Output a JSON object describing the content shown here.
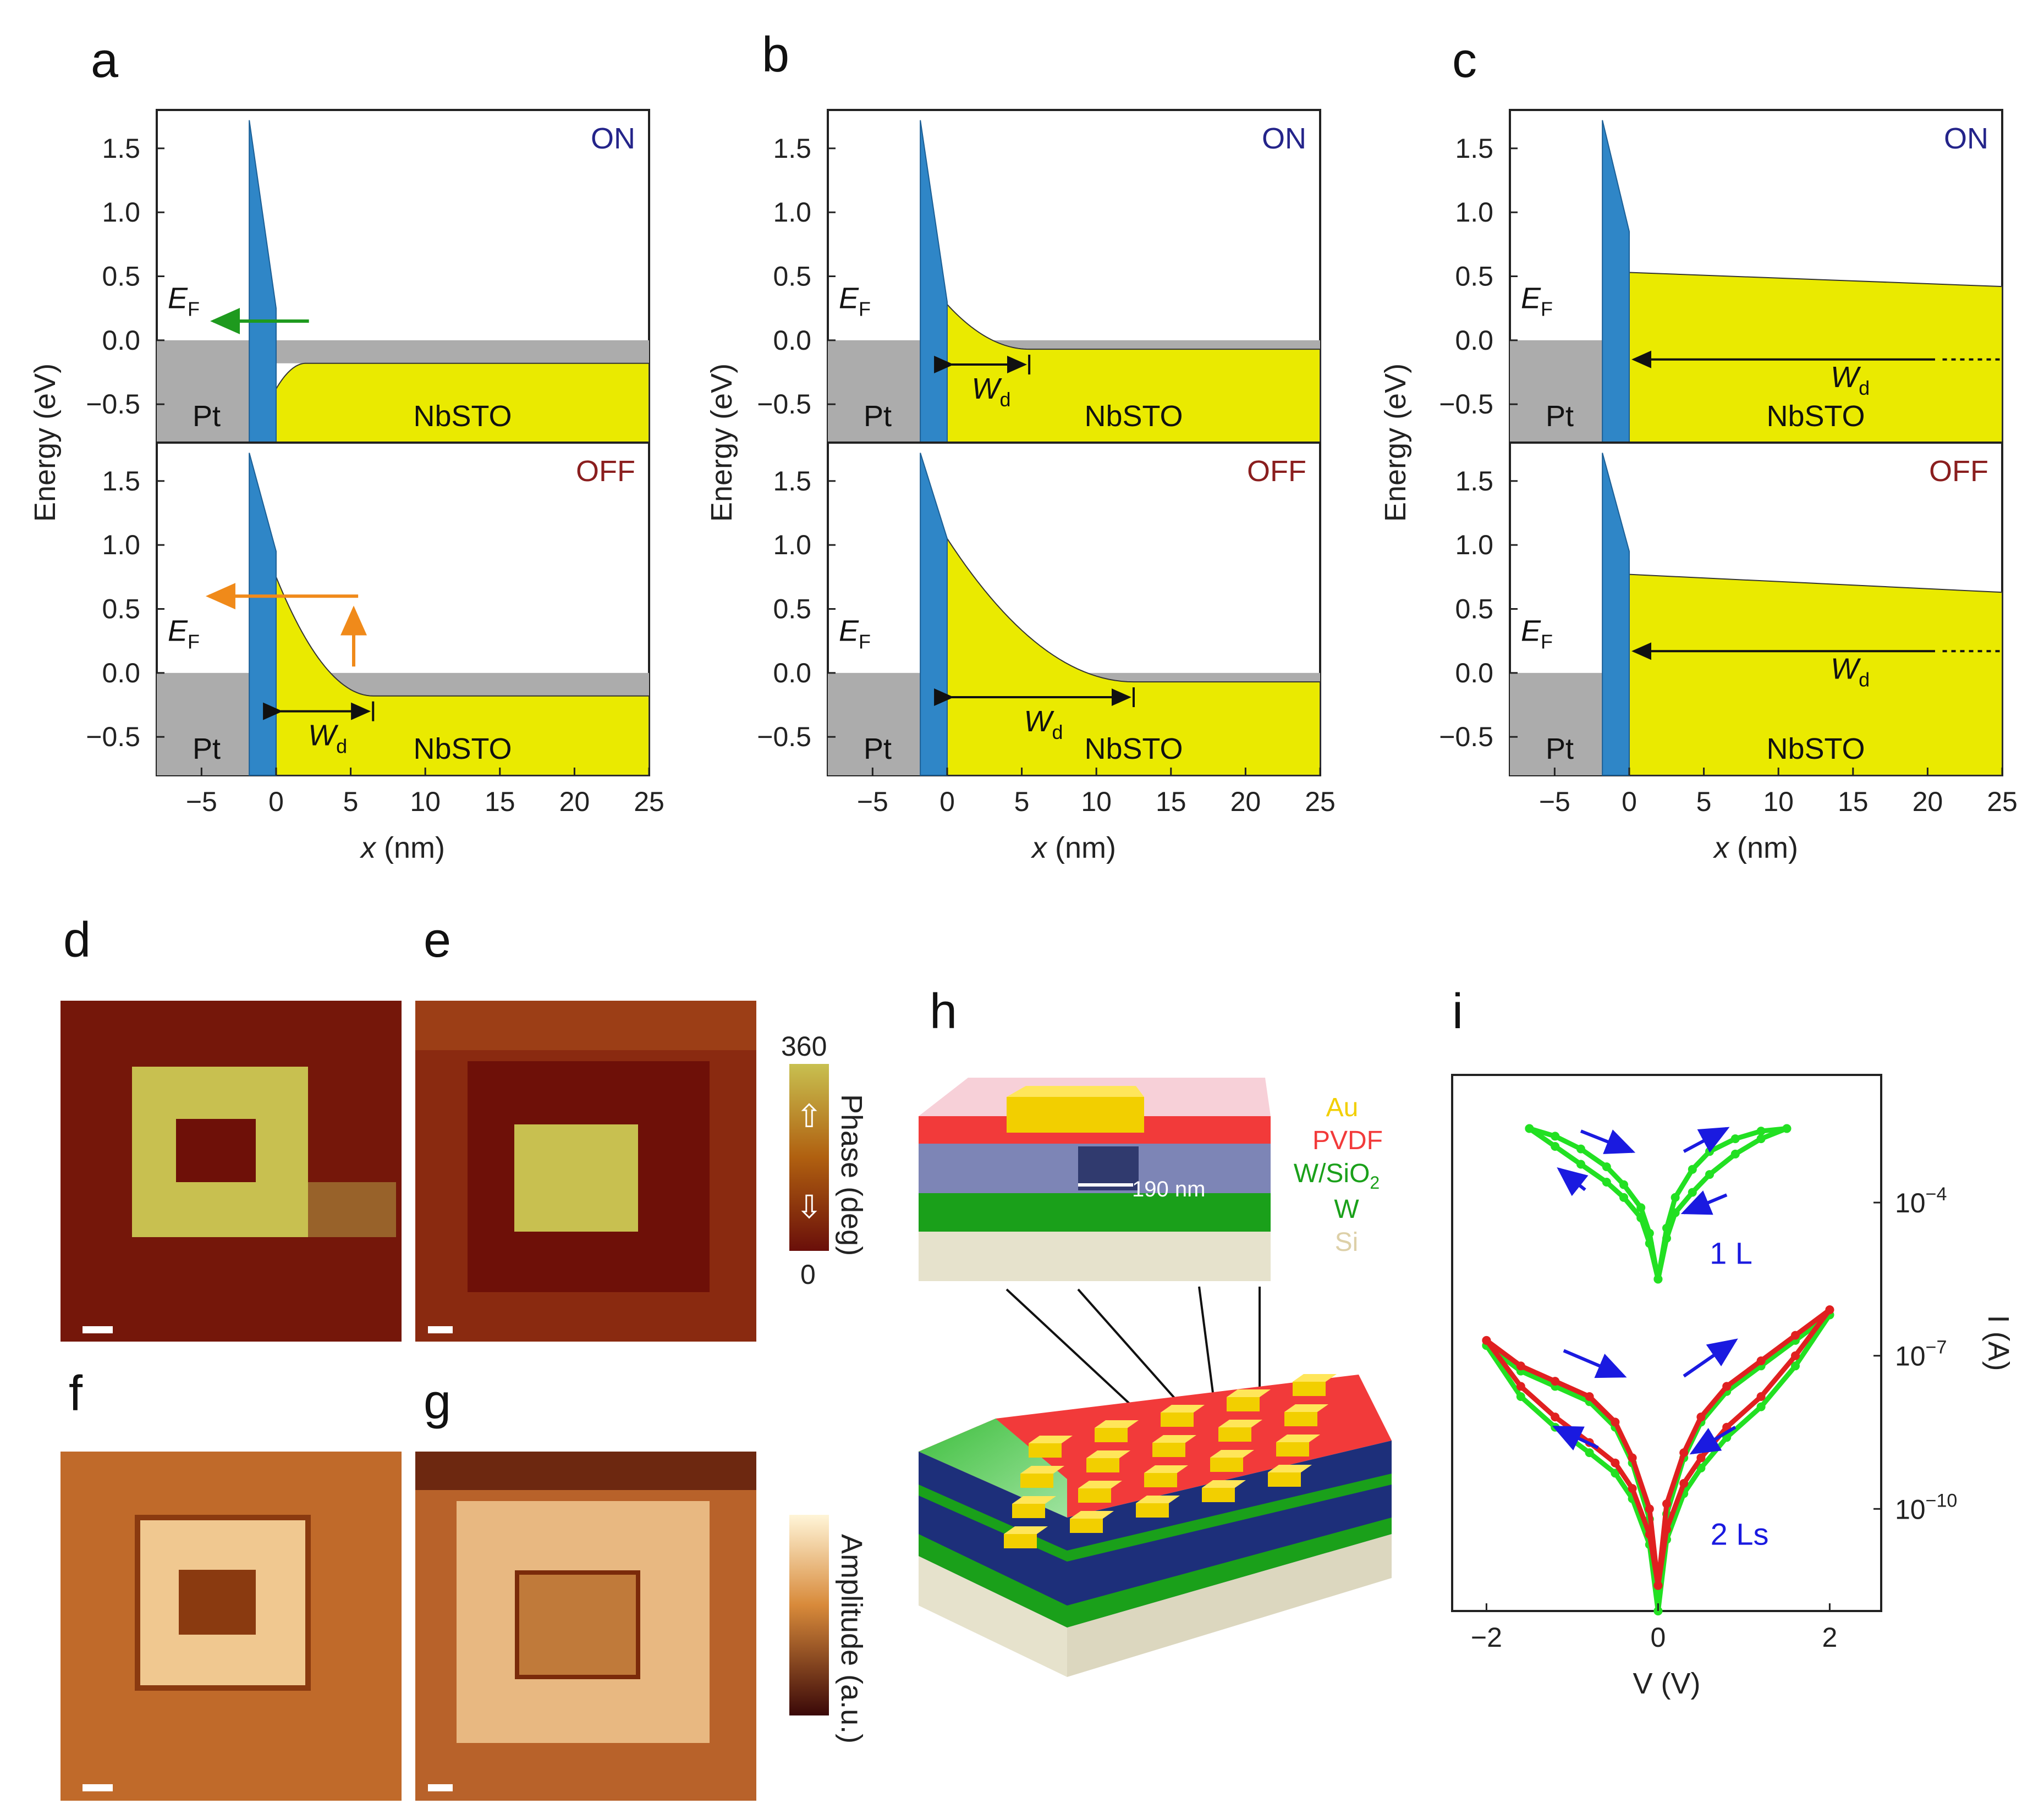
{
  "panel_labels": [
    "a",
    "b",
    "c",
    "d",
    "e",
    "f",
    "g",
    "h",
    "i"
  ],
  "colors": {
    "pt": "#acacac",
    "barrier": "#2f86c7",
    "nbsto": "#eaea00",
    "nbsto_edge": "#333333",
    "on": "#24248a",
    "off": "#8a1e1e",
    "green_arrow": "#1e9a1e",
    "orange_arrow": "#f08a1a",
    "iv_green": "#22e022",
    "iv_red": "#e02020",
    "iv_arrow": "#1a1ae0",
    "au": "#f2cf00",
    "pvdf": "#f23a3a",
    "wsio2": "#1d2f7a",
    "w": "#1aa01a",
    "si": "#ddd8c0"
  },
  "chart_data": [
    {
      "id": "a",
      "type": "line",
      "title": "",
      "xlabel": "x (nm)",
      "ylabel": "Energy (eV)",
      "xlim": [
        -8,
        25
      ],
      "ylim": [
        -0.8,
        1.8
      ],
      "xticks": [
        -5,
        0,
        5,
        10,
        15,
        20,
        25
      ],
      "yticks": [
        1.5,
        1.0,
        0.5,
        0.0,
        -0.5
      ],
      "ytick_labels": [
        "1.5",
        "1.0",
        "0.5",
        "0.0",
        "−0.5"
      ],
      "xtick_labels": [
        "−5",
        "0",
        "5",
        "10",
        "15",
        "20",
        "25"
      ],
      "states": [
        {
          "name": "ON",
          "barrier_top": 1.72,
          "barrier_right_top": 0.25,
          "band_start": -0.38,
          "band_flat": -0.18,
          "wd": 2,
          "fermi_label": "E",
          "fermi_sub": "F",
          "pt_label": "Pt",
          "nbsto_label": "NbSTO",
          "wd_label": "W",
          "wd_sub": "d",
          "wd_shown": false
        },
        {
          "name": "OFF",
          "barrier_top": 1.72,
          "barrier_right_top": 0.95,
          "band_start": 0.75,
          "band_flat": -0.18,
          "wd": 6.5,
          "fermi_label": "E",
          "fermi_sub": "F",
          "pt_label": "Pt",
          "nbsto_label": "NbSTO",
          "wd_label": "W",
          "wd_sub": "d",
          "wd_shown": true
        }
      ]
    },
    {
      "id": "b",
      "type": "line",
      "title": "",
      "xlabel": "x (nm)",
      "ylabel": "Energy (eV)",
      "xlim": [
        -8,
        25
      ],
      "ylim": [
        -0.8,
        1.8
      ],
      "xticks": [
        -5,
        0,
        5,
        10,
        15,
        20,
        25
      ],
      "yticks": [
        1.5,
        1.0,
        0.5,
        0.0,
        -0.5
      ],
      "ytick_labels": [
        "1.5",
        "1.0",
        "0.5",
        "0.0",
        "−0.5"
      ],
      "xtick_labels": [
        "−5",
        "0",
        "5",
        "10",
        "15",
        "20",
        "25"
      ],
      "states": [
        {
          "name": "ON",
          "barrier_top": 1.72,
          "barrier_right_top": 0.3,
          "band_start": 0.28,
          "band_flat": -0.07,
          "wd": 5.5,
          "fermi_label": "E",
          "fermi_sub": "F",
          "pt_label": "Pt",
          "nbsto_label": "NbSTO",
          "wd_label": "W",
          "wd_sub": "d",
          "wd_shown": true
        },
        {
          "name": "OFF",
          "barrier_top": 1.72,
          "barrier_right_top": 1.05,
          "band_start": 1.05,
          "band_flat": -0.07,
          "wd": 12.5,
          "fermi_label": "E",
          "fermi_sub": "F",
          "pt_label": "Pt",
          "nbsto_label": "NbSTO",
          "wd_label": "W",
          "wd_sub": "d",
          "wd_shown": true
        }
      ]
    },
    {
      "id": "c",
      "type": "line",
      "title": "",
      "xlabel": "x (nm)",
      "ylabel": "Energy (eV)",
      "xlim": [
        -8,
        25
      ],
      "ylim": [
        -0.8,
        1.8
      ],
      "xticks": [
        -5,
        0,
        5,
        10,
        15,
        20,
        25
      ],
      "yticks": [
        1.5,
        1.0,
        0.5,
        0.0,
        -0.5
      ],
      "ytick_labels": [
        "1.5",
        "1.0",
        "0.5",
        "0.0",
        "−0.5"
      ],
      "xtick_labels": [
        "−5",
        "0",
        "5",
        "10",
        "15",
        "20",
        "25"
      ],
      "states": [
        {
          "name": "ON",
          "barrier_top": 1.72,
          "barrier_right_top": 0.85,
          "band_start": 0.53,
          "band_end": 0.42,
          "wd_arrow_y": -0.15,
          "fermi_label": "E",
          "fermi_sub": "F",
          "pt_label": "Pt",
          "nbsto_label": "NbSTO",
          "wd_label": "W",
          "wd_sub": "d"
        },
        {
          "name": "OFF",
          "barrier_top": 1.72,
          "barrier_right_top": 0.95,
          "band_start": 0.77,
          "band_end": 0.63,
          "wd_arrow_y": 0.17,
          "fermi_label": "E",
          "fermi_sub": "F",
          "pt_label": "Pt",
          "nbsto_label": "NbSTO",
          "wd_label": "W",
          "wd_sub": "d"
        }
      ]
    },
    {
      "id": "i",
      "type": "line",
      "title": "",
      "xlabel": "V (V)",
      "ylabel": "I (A)",
      "xlim": [
        -2.4,
        2.6
      ],
      "ylim_log10": [
        -12,
        -1.5
      ],
      "xticks": [
        -2,
        0,
        2
      ],
      "xtick_labels": [
        "−2",
        "0",
        "2"
      ],
      "yticks_log10": [
        -4,
        -7,
        -10
      ],
      "ytick_labels": [
        {
          "base": "10",
          "exp": "−4"
        },
        {
          "base": "10",
          "exp": "−7"
        },
        {
          "base": "10",
          "exp": "−10"
        }
      ],
      "annotations": [
        "1 L",
        "2 Ls"
      ],
      "series": [
        {
          "name": "1 L upper",
          "color": "green",
          "x": [
            -1.5,
            -1.2,
            -0.9,
            -0.6,
            -0.4,
            -0.2,
            -0.1,
            0.0,
            0.1,
            0.2,
            0.4,
            0.6,
            0.9,
            1.2,
            1.5
          ],
          "log10_I": [
            -2.55,
            -2.7,
            -2.95,
            -3.3,
            -3.65,
            -4.1,
            -4.6,
            -5.5,
            -4.5,
            -3.9,
            -3.35,
            -3.0,
            -2.75,
            -2.6,
            -2.55
          ]
        },
        {
          "name": "1 L lower",
          "color": "green",
          "x": [
            -1.5,
            -1.2,
            -0.9,
            -0.6,
            -0.4,
            -0.2,
            -0.1,
            0.0,
            0.1,
            0.2,
            0.4,
            0.6,
            0.9,
            1.2,
            1.5
          ],
          "log10_I": [
            -2.55,
            -2.9,
            -3.25,
            -3.6,
            -3.9,
            -4.3,
            -4.8,
            -5.5,
            -4.7,
            -4.2,
            -3.8,
            -3.45,
            -3.05,
            -2.75,
            -2.55
          ]
        },
        {
          "name": "2 Ls green upper",
          "color": "green",
          "x": [
            -2.0,
            -1.6,
            -1.2,
            -0.8,
            -0.5,
            -0.3,
            -0.1,
            0.0,
            0.1,
            0.3,
            0.5,
            0.8,
            1.2,
            1.6,
            2.0
          ],
          "log10_I": [
            -6.8,
            -7.3,
            -7.6,
            -7.9,
            -8.4,
            -9.1,
            -10.2,
            -12.0,
            -10.1,
            -9.0,
            -8.3,
            -7.7,
            -7.2,
            -6.7,
            -6.2
          ]
        },
        {
          "name": "2 Ls green lower",
          "color": "green",
          "x": [
            -2.0,
            -1.6,
            -1.2,
            -0.8,
            -0.5,
            -0.3,
            -0.1,
            0.0,
            0.1,
            0.3,
            0.5,
            0.8,
            1.2,
            1.6,
            2.0
          ],
          "log10_I": [
            -6.8,
            -7.8,
            -8.4,
            -8.9,
            -9.3,
            -9.8,
            -10.7,
            -12.0,
            -10.6,
            -9.7,
            -9.2,
            -8.6,
            -8.0,
            -7.2,
            -6.2
          ]
        },
        {
          "name": "2 Ls red upper",
          "color": "red",
          "x": [
            -2.0,
            -1.6,
            -1.2,
            -0.8,
            -0.5,
            -0.3,
            -0.1,
            0.0,
            0.1,
            0.3,
            0.5,
            0.8,
            1.2,
            1.6,
            2.0
          ],
          "log10_I": [
            -6.7,
            -7.2,
            -7.5,
            -7.8,
            -8.3,
            -9.0,
            -10.0,
            -11.5,
            -9.9,
            -8.9,
            -8.2,
            -7.6,
            -7.1,
            -6.6,
            -6.1
          ]
        },
        {
          "name": "2 Ls red lower",
          "color": "red",
          "x": [
            -2.0,
            -1.6,
            -1.2,
            -0.8,
            -0.5,
            -0.3,
            -0.1,
            0.0,
            0.1,
            0.3,
            0.5,
            0.8,
            1.2,
            1.6,
            2.0
          ],
          "log10_I": [
            -6.7,
            -7.6,
            -8.2,
            -8.7,
            -9.1,
            -9.6,
            -10.5,
            -11.5,
            -10.4,
            -9.5,
            -9.0,
            -8.4,
            -7.8,
            -7.0,
            -6.1
          ]
        }
      ]
    }
  ],
  "pfm": {
    "phase_colorbar": {
      "max_label": "360",
      "min_label": "0",
      "label": "Phase (deg)",
      "up_arrow": "⇧",
      "down_arrow": "⇩"
    },
    "amplitude_colorbar": {
      "label": "Amplitude (a.u.)"
    }
  },
  "device": {
    "legend": {
      "au": "Au",
      "pvdf": "PVDF",
      "wsio2": "W/SiO",
      "wsio2_sub": "2",
      "w": "W",
      "si": "Si"
    },
    "dimension": "190 nm"
  }
}
